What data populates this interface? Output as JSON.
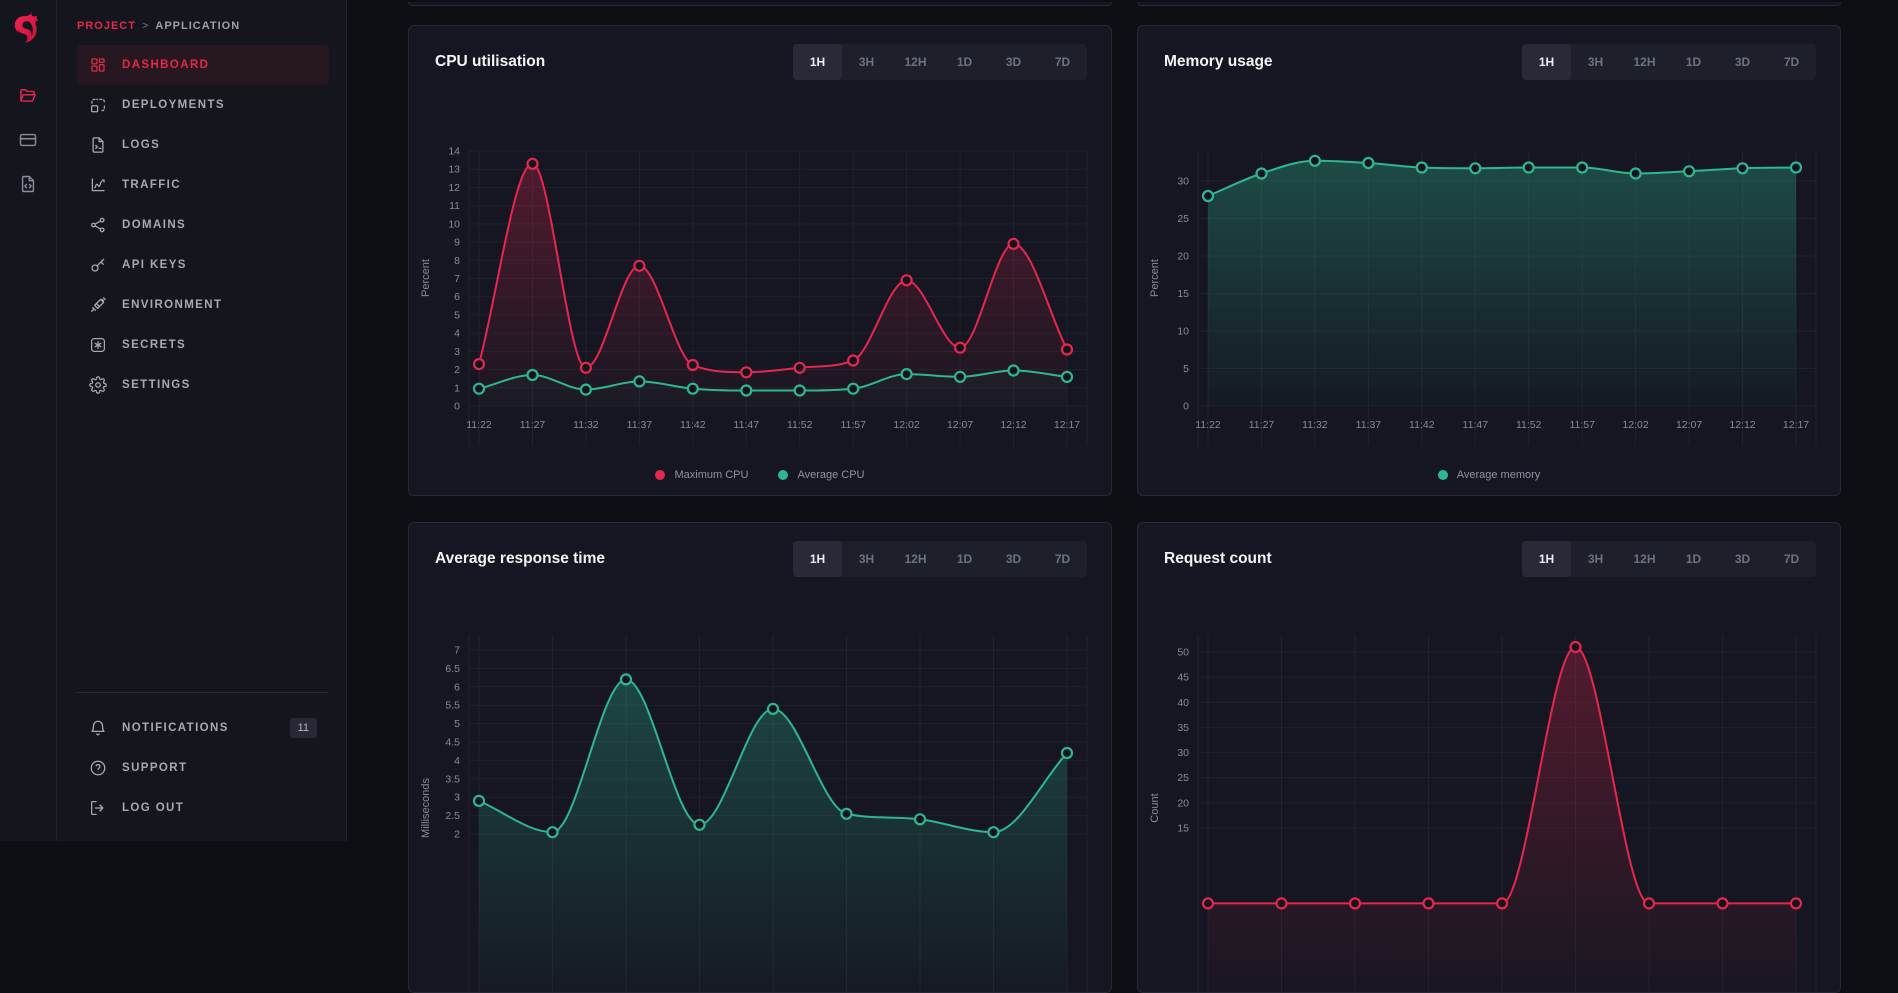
{
  "breadcrumb": {
    "project": "PROJECT",
    "separator": ">",
    "application": "APPLICATION"
  },
  "rail": {
    "items": [
      {
        "icon": "folder-open-icon",
        "active": true
      },
      {
        "icon": "credit-card-icon",
        "active": false
      },
      {
        "icon": "file-code-icon",
        "active": false
      }
    ]
  },
  "sidebar": {
    "items": [
      {
        "label": "DASHBOARD",
        "icon": "dashboard-grid-icon",
        "active": true
      },
      {
        "label": "DEPLOYMENTS",
        "icon": "deployments-icon",
        "active": false
      },
      {
        "label": "LOGS",
        "icon": "logs-icon",
        "active": false
      },
      {
        "label": "TRAFFIC",
        "icon": "traffic-chart-icon",
        "active": false
      },
      {
        "label": "DOMAINS",
        "icon": "domains-network-icon",
        "active": false
      },
      {
        "label": "API KEYS",
        "icon": "key-icon",
        "active": false
      },
      {
        "label": "ENVIRONMENT",
        "icon": "environment-icon",
        "active": false
      },
      {
        "label": "SECRETS",
        "icon": "secrets-icon",
        "active": false
      },
      {
        "label": "SETTINGS",
        "icon": "settings-gear-icon",
        "active": false
      }
    ],
    "bottom_items": [
      {
        "label": "NOTIFICATIONS",
        "icon": "bell-icon",
        "badge": "11"
      },
      {
        "label": "SUPPORT",
        "icon": "help-circle-icon",
        "badge": null
      },
      {
        "label": "LOG OUT",
        "icon": "logout-icon",
        "badge": null
      }
    ]
  },
  "time_ranges": [
    "1H",
    "3H",
    "12H",
    "1D",
    "3D",
    "7D"
  ],
  "active_time_range": "1H",
  "colors": {
    "accent_red": "#e5274e",
    "teal": "#2eb78f",
    "page_bg": "#0e0f15",
    "sidebar_bg": "#14151d",
    "card_bg": "#151621",
    "border": "#262837",
    "grid_line": "#1f212c",
    "text_primary": "#f3f4f6",
    "text_muted": "#878a97"
  },
  "chart_data": [
    {
      "type": "line",
      "title": "CPU utilisation",
      "ylabel": "Percent",
      "x": [
        "11:22",
        "11:27",
        "11:32",
        "11:37",
        "11:42",
        "11:47",
        "11:52",
        "11:57",
        "12:02",
        "12:07",
        "12:12",
        "12:17"
      ],
      "x_labels_visible": true,
      "yticks": [
        0,
        1,
        2,
        3,
        4,
        5,
        6,
        7,
        8,
        9,
        10,
        11,
        12,
        13,
        14
      ],
      "ylim": [
        0,
        14
      ],
      "grid": true,
      "legend_visible": true,
      "legend_position": "bottom",
      "series": [
        {
          "name": "Maximum CPU",
          "color": "#e5274e",
          "values": [
            2.3,
            13.3,
            2.1,
            7.7,
            2.25,
            1.85,
            2.1,
            2.5,
            6.9,
            3.2,
            8.9,
            3.1
          ]
        },
        {
          "name": "Average CPU",
          "color": "#2eb78f",
          "values": [
            0.95,
            1.7,
            0.9,
            1.35,
            0.95,
            0.85,
            0.85,
            0.95,
            1.75,
            1.6,
            1.95,
            1.6
          ]
        }
      ]
    },
    {
      "type": "line",
      "title": "Memory usage",
      "ylabel": "Percent",
      "x": [
        "11:22",
        "11:27",
        "11:32",
        "11:37",
        "11:42",
        "11:47",
        "11:52",
        "11:57",
        "12:02",
        "12:07",
        "12:12",
        "12:17"
      ],
      "x_labels_visible": true,
      "yticks": [
        0,
        5,
        10,
        15,
        20,
        25,
        30
      ],
      "ylim": [
        0,
        34
      ],
      "grid": true,
      "legend_visible": true,
      "legend_position": "bottom",
      "series": [
        {
          "name": "Average memory",
          "color": "#2eb78f",
          "values": [
            28,
            31,
            32.7,
            32.4,
            31.8,
            31.7,
            31.8,
            31.8,
            31,
            31.3,
            31.7,
            31.8
          ]
        }
      ]
    },
    {
      "type": "line",
      "title": "Average response time",
      "ylabel": "Milliseconds",
      "x_labels_visible": false,
      "yticks": [
        2,
        2.5,
        3,
        3.5,
        4,
        4.5,
        5,
        5.5,
        6,
        6.5,
        7
      ],
      "ylim": [
        2,
        7
      ],
      "grid": true,
      "legend_visible": false,
      "clipped_by_viewport": true,
      "series": [
        {
          "name": "Average response time",
          "color": "#2eb78f",
          "values": [
            2.9,
            2.05,
            6.2,
            2.25,
            5.4,
            2.55,
            2.4,
            2.05,
            4.2
          ]
        }
      ]
    },
    {
      "type": "line",
      "title": "Request count",
      "ylabel": "Count",
      "x_labels_visible": false,
      "yticks": [
        15,
        20,
        25,
        30,
        35,
        40,
        45,
        50
      ],
      "ylim": [
        15,
        50
      ],
      "grid": true,
      "legend_visible": false,
      "clipped_by_viewport": true,
      "series": [
        {
          "name": "Request count",
          "color": "#e5274e",
          "values": [
            0,
            0,
            0,
            0,
            0,
            51,
            0,
            0,
            0
          ]
        }
      ]
    }
  ]
}
